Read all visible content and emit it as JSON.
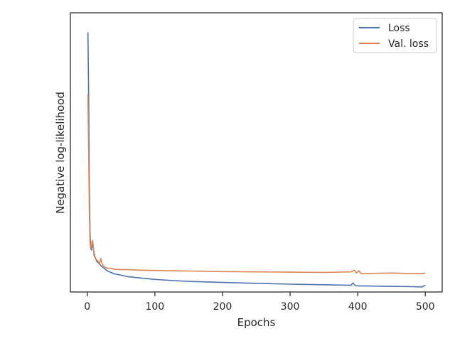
{
  "chart_data": {
    "type": "line",
    "title": "",
    "xlabel": "Epochs",
    "ylabel": "Negative log-likelihood",
    "xlim": [
      -25,
      525
    ],
    "ylim": [
      0,
      1
    ],
    "y_ticks_shown": false,
    "x_ticks": [
      0,
      100,
      200,
      300,
      400,
      500
    ],
    "grid": false,
    "legend": {
      "placement": "top-right",
      "entries": [
        "Loss",
        "Val. loss"
      ]
    },
    "series": [
      {
        "name": "Loss",
        "color": "#4c72b0",
        "points": [
          [
            1,
            0.93
          ],
          [
            2,
            0.7
          ],
          [
            3,
            0.4
          ],
          [
            4,
            0.22
          ],
          [
            5,
            0.16
          ],
          [
            6,
            0.15
          ],
          [
            7,
            0.16
          ],
          [
            8,
            0.17
          ],
          [
            9,
            0.16
          ],
          [
            10,
            0.14
          ],
          [
            12,
            0.12
          ],
          [
            14,
            0.11
          ],
          [
            16,
            0.105
          ],
          [
            18,
            0.1
          ],
          [
            20,
            0.095
          ],
          [
            22,
            0.09
          ],
          [
            25,
            0.085
          ],
          [
            30,
            0.075
          ],
          [
            35,
            0.07
          ],
          [
            40,
            0.065
          ],
          [
            50,
            0.06
          ],
          [
            60,
            0.055
          ],
          [
            80,
            0.05
          ],
          [
            100,
            0.045
          ],
          [
            120,
            0.042
          ],
          [
            150,
            0.038
          ],
          [
            200,
            0.034
          ],
          [
            250,
            0.031
          ],
          [
            300,
            0.028
          ],
          [
            350,
            0.026
          ],
          [
            390,
            0.024
          ],
          [
            393,
            0.032
          ],
          [
            396,
            0.024
          ],
          [
            400,
            0.022
          ],
          [
            450,
            0.02
          ],
          [
            480,
            0.019
          ],
          [
            495,
            0.018
          ],
          [
            500,
            0.024
          ]
        ]
      },
      {
        "name": "Val. loss",
        "color": "#dd8452",
        "points": [
          [
            1,
            0.71
          ],
          [
            2,
            0.5
          ],
          [
            3,
            0.3
          ],
          [
            4,
            0.18
          ],
          [
            5,
            0.155
          ],
          [
            6,
            0.16
          ],
          [
            7,
            0.18
          ],
          [
            8,
            0.185
          ],
          [
            9,
            0.16
          ],
          [
            10,
            0.13
          ],
          [
            12,
            0.12
          ],
          [
            14,
            0.115
          ],
          [
            16,
            0.11
          ],
          [
            18,
            0.1
          ],
          [
            20,
            0.12
          ],
          [
            22,
            0.1
          ],
          [
            25,
            0.09
          ],
          [
            30,
            0.085
          ],
          [
            35,
            0.085
          ],
          [
            40,
            0.082
          ],
          [
            50,
            0.08
          ],
          [
            60,
            0.08
          ],
          [
            80,
            0.078
          ],
          [
            100,
            0.077
          ],
          [
            120,
            0.076
          ],
          [
            150,
            0.075
          ],
          [
            200,
            0.073
          ],
          [
            250,
            0.072
          ],
          [
            300,
            0.071
          ],
          [
            350,
            0.07
          ],
          [
            390,
            0.072
          ],
          [
            395,
            0.078
          ],
          [
            398,
            0.068
          ],
          [
            402,
            0.076
          ],
          [
            405,
            0.066
          ],
          [
            450,
            0.068
          ],
          [
            480,
            0.066
          ],
          [
            495,
            0.066
          ],
          [
            500,
            0.068
          ]
        ]
      }
    ]
  }
}
